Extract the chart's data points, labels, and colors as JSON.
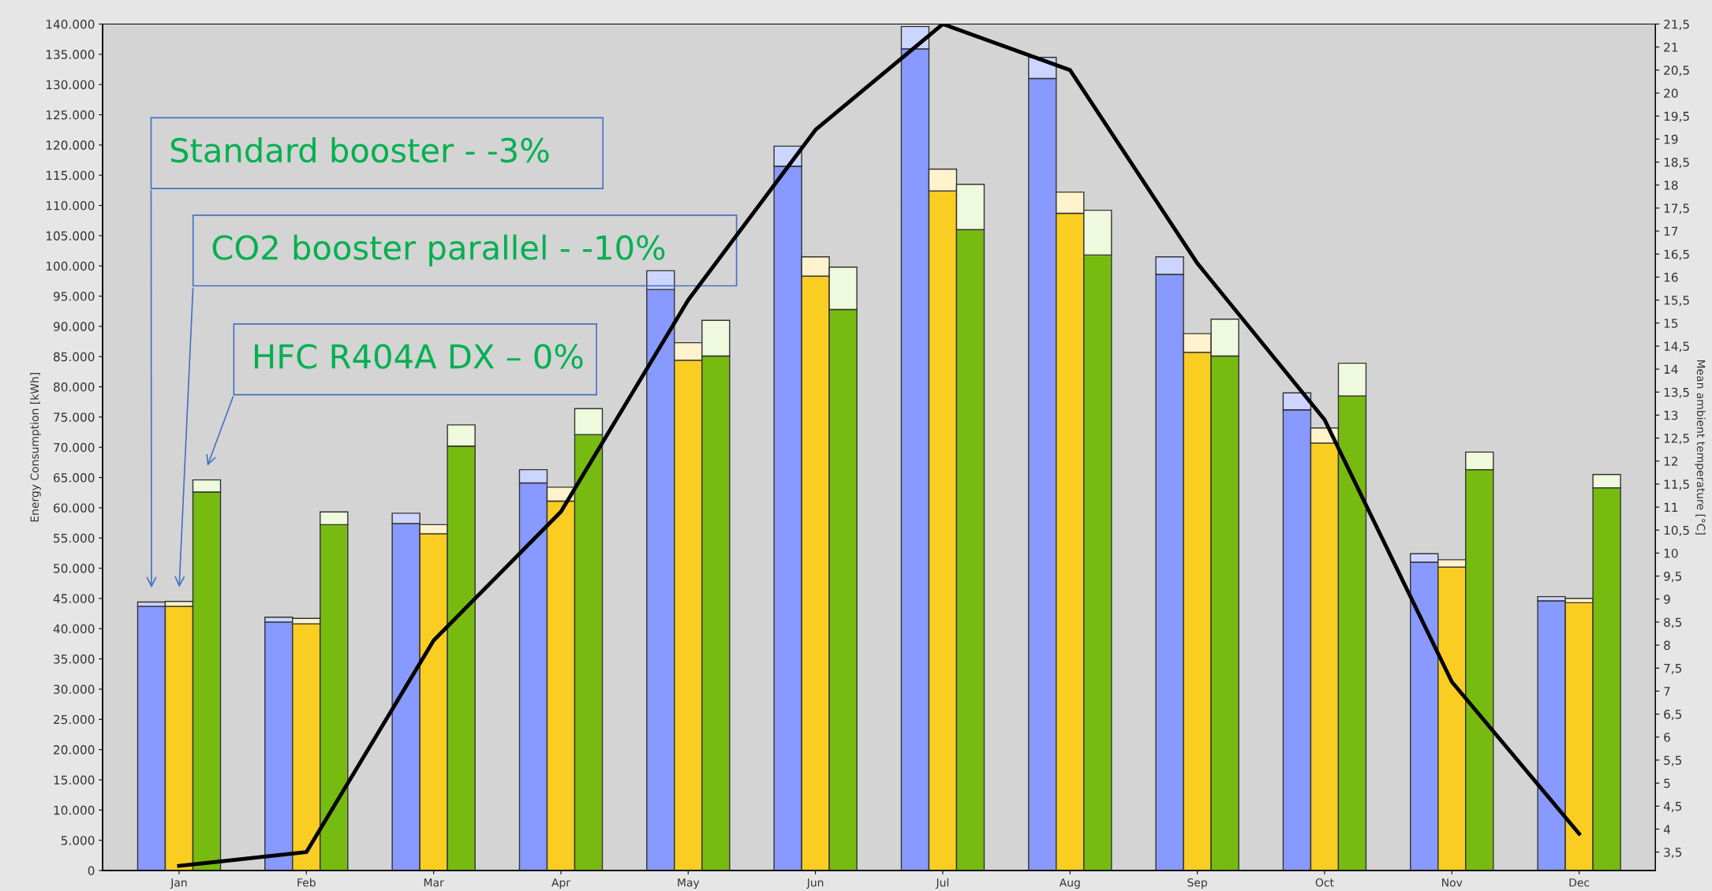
{
  "chart_data": [
    {
      "type": "bar",
      "ylabel": "Energy Consumption [kWh]",
      "y2label": "Mean ambient temperature [°C]",
      "categories": [
        "Jan",
        "Feb",
        "Mar",
        "Apr",
        "May",
        "Jun",
        "Jul",
        "Aug",
        "Sep",
        "Oct",
        "Nov",
        "Dec"
      ],
      "stacked": true,
      "series": [
        {
          "color": "#8899ff",
          "values": [
            43700,
            41100,
            57400,
            64100,
            96100,
            116500,
            135900,
            131000,
            98600,
            76200,
            51000,
            44600
          ]
        },
        {
          "color": "#ccd5ff",
          "values": [
            700,
            800,
            1700,
            2200,
            3100,
            3300,
            3700,
            3500,
            2900,
            2800,
            1400,
            700
          ]
        },
        {
          "type": "line",
          "axis": "y2",
          "color": "#000000",
          "values": [
            3.2,
            3.5,
            8.1,
            10.9,
            15.5,
            19.2,
            21.5,
            20.5,
            16.3,
            12.9,
            7.2,
            3.9
          ]
        }
      ],
      "ylim": [
        0,
        140000
      ],
      "yticks": [
        {
          "value": 0,
          "label": "0"
        },
        {
          "value": 5000,
          "label": "5.000"
        },
        {
          "value": 10000,
          "label": "10.000"
        },
        {
          "value": 15000,
          "label": "15.000"
        },
        {
          "value": 20000,
          "label": "20.000"
        },
        {
          "value": 25000,
          "label": "25.000"
        },
        {
          "value": 30000,
          "label": "30.000"
        },
        {
          "value": 35000,
          "label": "35.000"
        },
        {
          "value": 40000,
          "label": "40.000"
        },
        {
          "value": 45000,
          "label": "45.000"
        },
        {
          "value": 50000,
          "label": "50.000"
        },
        {
          "value": 55000,
          "label": "55.000"
        },
        {
          "value": 60000,
          "label": "60.000"
        },
        {
          "value": 65000,
          "label": "65.000"
        },
        {
          "value": 70000,
          "label": "70.000"
        },
        {
          "value": 75000,
          "label": "75.000"
        },
        {
          "value": 80000,
          "label": "80.000"
        },
        {
          "value": 85000,
          "label": "85.000"
        },
        {
          "value": 90000,
          "label": "90.000"
        },
        {
          "value": 95000,
          "label": "95.000"
        },
        {
          "value": 100000,
          "label": "100.000"
        },
        {
          "value": 105000,
          "label": "105.000"
        },
        {
          "value": 110000,
          "label": "110.000"
        },
        {
          "value": 115000,
          "label": "115.000"
        },
        {
          "value": 120000,
          "label": "120.000"
        },
        {
          "value": 125000,
          "label": "125.000"
        },
        {
          "value": 130000,
          "label": "130.000"
        },
        {
          "value": 135000,
          "label": "135.000"
        },
        {
          "value": 140000,
          "label": "140.000"
        }
      ],
      "y2lim": [
        3.1,
        21.5
      ],
      "y2ticks": [
        {
          "value": 3.5,
          "label": "3,5"
        },
        4,
        {
          "value": 4.5,
          "label": "4,5"
        },
        5,
        {
          "value": 5.5,
          "label": "5,5"
        },
        6,
        {
          "value": 6.5,
          "label": "6,5"
        },
        7,
        {
          "value": 7.5,
          "label": "7,5"
        },
        8,
        {
          "value": 8.5,
          "label": "8,5"
        },
        9,
        {
          "value": 9.5,
          "label": "9,5"
        },
        10,
        {
          "value": 10.5,
          "label": "10,5"
        },
        11,
        {
          "value": 11.5,
          "label": "11,5"
        },
        12,
        {
          "value": 12.5,
          "label": "12,5"
        },
        13,
        {
          "value": 13.5,
          "label": "13,5"
        },
        14,
        {
          "value": 14.5,
          "label": "14,5"
        },
        15,
        {
          "value": 15.5,
          "label": "15,5"
        },
        16,
        {
          "value": 16.5,
          "label": "16,5"
        },
        17,
        {
          "value": 17.5,
          "label": "17,5"
        },
        18,
        {
          "value": 18.5,
          "label": "18,5"
        },
        19,
        {
          "value": 19.5,
          "label": "19,5"
        },
        20,
        {
          "value": 20.5,
          "label": "20,5"
        },
        21,
        {
          "value": 21.5,
          "label": "21,5"
        }
      ],
      "annotations": [
        "Standard booster - -3%",
        "CO2 booster parallel - -10%",
        "HFC R404A DX – 0%"
      ],
      "grid": false,
      "legend": false,
      "marker": "none",
      "line_style": "solid"
    },
    {
      "type": "bar",
      "stacked": true,
      "series": [
        {
          "color": "#f9cd22",
          "values": [
            43700,
            40800,
            55700,
            61100,
            84400,
            98300,
            112400,
            108700,
            85700,
            70700,
            50200,
            44300
          ]
        },
        {
          "color": "#fff2cc",
          "values": [
            800,
            900,
            1500,
            2300,
            2900,
            3200,
            3600,
            3500,
            3100,
            2500,
            1200,
            700
          ]
        }
      ],
      "ylim": [
        0,
        140000
      ],
      "tick_labels": false,
      "grid": false
    },
    {
      "type": "bar",
      "stacked": true,
      "series": [
        {
          "color": "#77bb11",
          "values": [
            62600,
            57200,
            70200,
            72100,
            85100,
            92800,
            106000,
            101800,
            85100,
            78500,
            66300,
            63300
          ]
        },
        {
          "color": "#eef9dd",
          "values": [
            2000,
            2100,
            3500,
            4300,
            5900,
            7000,
            7500,
            7400,
            6100,
            5400,
            2900,
            2200
          ]
        }
      ],
      "ylim": [
        0,
        140000
      ],
      "tick_labels": false,
      "grid": false
    }
  ]
}
